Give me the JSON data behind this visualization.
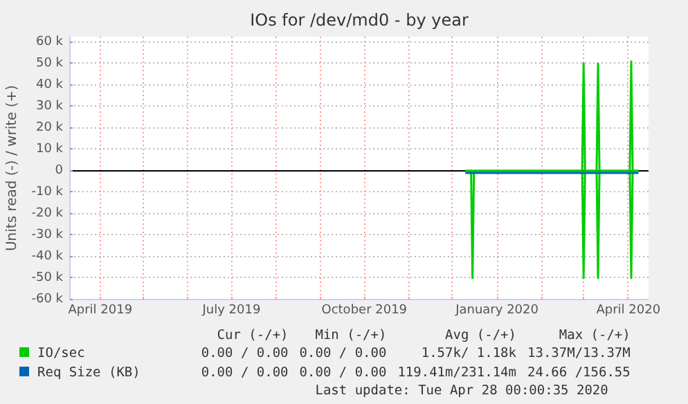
{
  "chart_data": {
    "type": "line",
    "title": "IOs for /dev/md0 - by year",
    "ylabel": "Units read (-) / write (+)",
    "xlim": [
      "2019-03-11",
      "2020-04-15"
    ],
    "xticks": [
      {
        "value": "2019-04-01",
        "label": "April 2019"
      },
      {
        "value": "2019-05-01",
        "label": null
      },
      {
        "value": "2019-06-01",
        "label": null
      },
      {
        "value": "2019-07-01",
        "label": "July 2019"
      },
      {
        "value": "2019-08-01",
        "label": null
      },
      {
        "value": "2019-09-01",
        "label": null
      },
      {
        "value": "2019-10-01",
        "label": "October 2019"
      },
      {
        "value": "2019-11-01",
        "label": null
      },
      {
        "value": "2019-12-01",
        "label": null
      },
      {
        "value": "2020-01-01",
        "label": "January 2020"
      },
      {
        "value": "2020-02-01",
        "label": null
      },
      {
        "value": "2020-03-01",
        "label": null
      },
      {
        "value": "2020-04-01",
        "label": "April 2020"
      }
    ],
    "ylim": [
      -60000,
      62500
    ],
    "yticks": [
      {
        "value": -60000,
        "label": "-60 k"
      },
      {
        "value": -50000,
        "label": "-50 k"
      },
      {
        "value": -40000,
        "label": "-40 k"
      },
      {
        "value": -30000,
        "label": "-30 k"
      },
      {
        "value": -20000,
        "label": "-20 k"
      },
      {
        "value": -10000,
        "label": "-10 k"
      },
      0,
      {
        "value": 10000,
        "label": "10 k"
      },
      {
        "value": 20000,
        "label": "20 k"
      },
      {
        "value": 30000,
        "label": "30 k"
      },
      {
        "value": 40000,
        "label": "40 k"
      },
      {
        "value": 50000,
        "label": "50 k"
      },
      {
        "value": 60000,
        "label": "60 k"
      }
    ],
    "grid": true,
    "legend": "bottom",
    "marker": "none",
    "line_style": "solid",
    "ref_lines": [
      {
        "axis": "y",
        "value": 0,
        "color": "#000000"
      }
    ],
    "series": [
      {
        "name": "IO/sec",
        "color": "#00cc00",
        "x": [
          "2019-12-10",
          "2020-02-29",
          "2020-03-01",
          "2020-03-02",
          "2020-03-10",
          "2020-03-11",
          "2020-03-12",
          "2020-04-02",
          "2020-04-03",
          "2020-04-04",
          "2020-04-08"
        ],
        "values": [
          0,
          0,
          50000,
          0,
          0,
          50000,
          0,
          0,
          51000,
          0,
          0
        ]
      },
      {
        "color": "#00cc00",
        "x": [
          "2019-12-10",
          "2019-12-14",
          "2019-12-15",
          "2019-12-16",
          "2020-02-29",
          "2020-03-01",
          "2020-03-02",
          "2020-03-10",
          "2020-03-11",
          "2020-03-12",
          "2020-04-02",
          "2020-04-03",
          "2020-04-04",
          "2020-04-08"
        ],
        "values": [
          0,
          0,
          -50000,
          0,
          0,
          -50000,
          0,
          0,
          -50000,
          0,
          0,
          -50000,
          0,
          0
        ]
      },
      {
        "name": "Req Size (KB)",
        "color": "#0066b3",
        "x": [
          "2019-12-10",
          "2020-01-15",
          "2020-02-20",
          "2020-04-08"
        ],
        "values": [
          -1000,
          -1000,
          -1000,
          -1000
        ]
      }
    ],
    "annotations": [
      "Cur (-/+)",
      "Min (-/+)",
      "Avg (-/+)",
      "Max (-/+)",
      "0.00 / 0.00",
      "0.00 / 0.00",
      "1.57k/ 1.18k",
      "13.37M/13.37M",
      "0.00 / 0.00",
      "0.00 / 0.00",
      "119.41m/231.14m",
      "24.66 /156.55",
      "Last update: Tue Apr 28 00:00:35 2020"
    ]
  }
}
